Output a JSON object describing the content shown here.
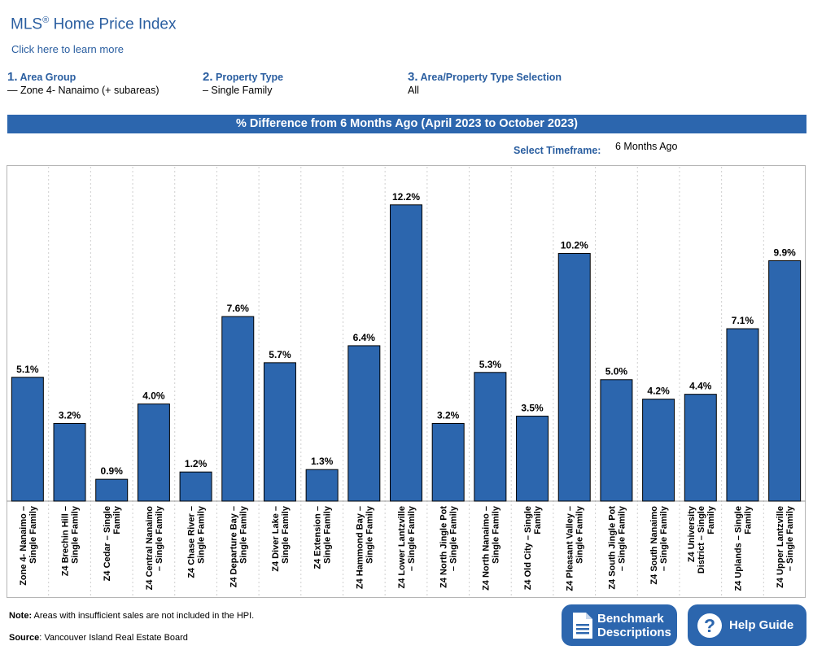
{
  "header": {
    "title": "MLS",
    "title_mark": "®",
    "title_rest": " Home Price Index",
    "learn_more": "Click here to learn more"
  },
  "selections": [
    {
      "num": "1.",
      "label": "Area Group",
      "value": "— Zone 4- Nanaimo (+ subareas)"
    },
    {
      "num": "2.",
      "label": "Property Type",
      "value": "– Single Family"
    },
    {
      "num": "3.",
      "label": "Area/Property Type Selection",
      "value": "All"
    }
  ],
  "banner": "% Difference from 6 Months Ago (April 2023 to October 2023)",
  "timeframe": {
    "label": "Select Timeframe:",
    "value": "6 Months Ago"
  },
  "chart_data": {
    "type": "bar",
    "categories": [
      [
        "Zone 4- Nanaimo –",
        "Single Family"
      ],
      [
        "Z4 Brechin Hill –",
        "Single Family"
      ],
      [
        "Z4 Cedar – Single",
        "Family"
      ],
      [
        "Z4 Central Nanaimo",
        "– Single Family"
      ],
      [
        "Z4 Chase River –",
        "Single Family"
      ],
      [
        "Z4 Departure Bay –",
        "Single Family"
      ],
      [
        "Z4 Diver Lake –",
        "Single Family"
      ],
      [
        "Z4 Extension –",
        "Single Family"
      ],
      [
        "Z4 Hammond Bay –",
        "Single Family"
      ],
      [
        "Z4 Lower Lantzville",
        "– Single Family"
      ],
      [
        "Z4 North Jingle Pot",
        "– Single Family"
      ],
      [
        "Z4 North Nanaimo –",
        "Single Family"
      ],
      [
        "Z4 Old City – Single",
        "Family"
      ],
      [
        "Z4 Pleasant Valley –",
        "Single Family"
      ],
      [
        "Z4 South Jingle Pot",
        "– Single Family"
      ],
      [
        "Z4 South Nanaimo",
        "– Single Family"
      ],
      [
        "Z4 University",
        "District – Single",
        "Family"
      ],
      [
        "Z4 Uplands – Single",
        "Family"
      ],
      [
        "Z4 Upper Lantzville",
        "– Single Family"
      ]
    ],
    "values": [
      5.1,
      3.2,
      0.9,
      4.0,
      1.2,
      7.6,
      5.7,
      1.3,
      6.4,
      12.2,
      3.2,
      5.3,
      3.5,
      10.2,
      5.0,
      4.2,
      4.4,
      7.1,
      9.9
    ],
    "data_labels": [
      "5.1%",
      "3.2%",
      "0.9%",
      "4.0%",
      "1.2%",
      "7.6%",
      "5.7%",
      "1.3%",
      "6.4%",
      "12.2%",
      "3.2%",
      "5.3%",
      "3.5%",
      "10.2%",
      "5.0%",
      "4.2%",
      "4.4%",
      "7.1%",
      "9.9%"
    ],
    "ylim": [
      0,
      13.5
    ],
    "grid": "vertical dashed",
    "bar_color": "#2c66ae"
  },
  "footer": {
    "note_label": "Note:",
    "note_text": " Areas with insufficient sales are not included in the HPI.",
    "source_label": "Source",
    "source_text": ": Vancouver Island Real Estate Board"
  },
  "buttons": {
    "benchmark_line1": "Benchmark",
    "benchmark_line2": "Descriptions",
    "help": "Help Guide",
    "help_glyph": "?"
  }
}
